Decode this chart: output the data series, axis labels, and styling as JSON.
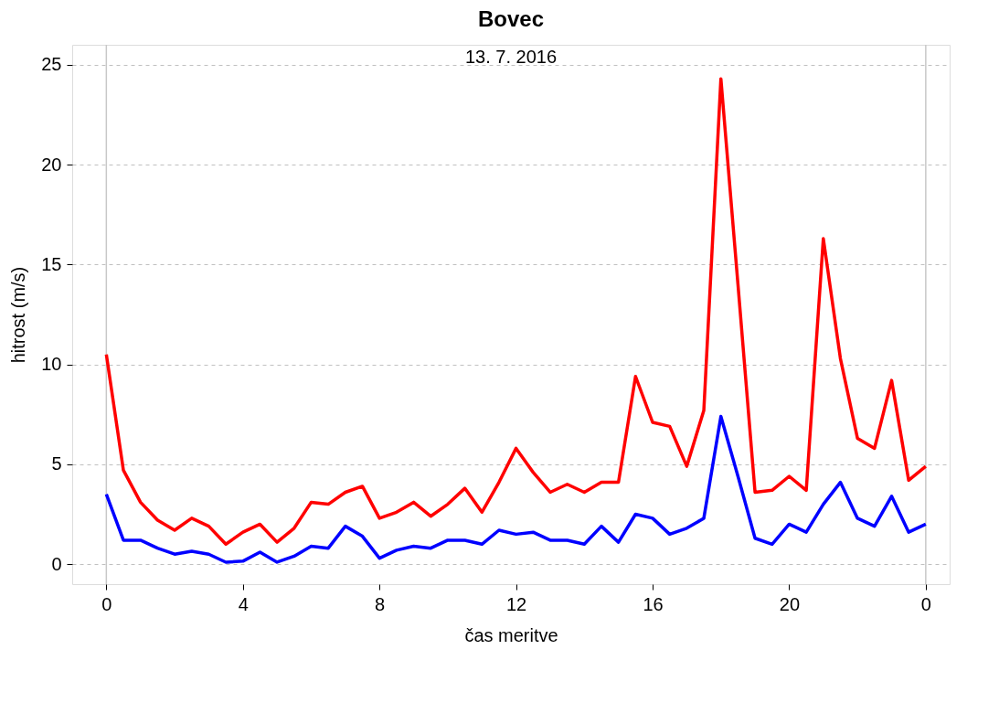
{
  "chart_data": {
    "type": "line",
    "title": "Bovec",
    "subtitle": "13. 7. 2016",
    "xlabel": "čas meritve",
    "ylabel": "hitrost (m/s)",
    "x": [
      "2016-07-13T00:00",
      "2016-07-13T00:30",
      "2016-07-13T01:00",
      "2016-07-13T01:30",
      "2016-07-13T02:00",
      "2016-07-13T02:30",
      "2016-07-13T03:00",
      "2016-07-13T03:30",
      "2016-07-13T04:00",
      "2016-07-13T04:30",
      "2016-07-13T05:00",
      "2016-07-13T05:30",
      "2016-07-13T06:00",
      "2016-07-13T06:30",
      "2016-07-13T07:00",
      "2016-07-13T07:30",
      "2016-07-13T08:00",
      "2016-07-13T08:30",
      "2016-07-13T09:00",
      "2016-07-13T09:30",
      "2016-07-13T10:00",
      "2016-07-13T10:30",
      "2016-07-13T11:00",
      "2016-07-13T11:30",
      "2016-07-13T12:00",
      "2016-07-13T12:30",
      "2016-07-13T13:00",
      "2016-07-13T13:30",
      "2016-07-13T14:00",
      "2016-07-13T14:30",
      "2016-07-13T15:00",
      "2016-07-13T15:30",
      "2016-07-13T16:00",
      "2016-07-13T16:30",
      "2016-07-13T17:00",
      "2016-07-13T17:30",
      "2016-07-13T18:00",
      "2016-07-13T18:30",
      "2016-07-13T19:00",
      "2016-07-13T19:30",
      "2016-07-13T20:00",
      "2016-07-13T20:30",
      "2016-07-13T21:00",
      "2016-07-13T21:30",
      "2016-07-13T22:00",
      "2016-07-13T22:30",
      "2016-07-13T23:00",
      "2016-07-13T23:30",
      "2016-07-14T00:00"
    ],
    "series": [
      {
        "color": "#ff0000",
        "values": [
          10.5,
          4.7,
          3.1,
          2.2,
          1.7,
          2.3,
          1.9,
          1.0,
          1.6,
          2.0,
          1.1,
          1.8,
          3.1,
          3.0,
          3.6,
          3.9,
          2.3,
          2.6,
          3.1,
          2.4,
          3.0,
          3.8,
          2.6,
          4.1,
          5.8,
          4.6,
          3.6,
          4.0,
          3.6,
          4.1,
          4.1,
          9.4,
          7.1,
          6.9,
          4.9,
          7.7,
          24.3,
          14.0,
          3.6,
          3.7,
          4.4,
          3.7,
          16.3,
          10.3,
          6.3,
          5.8,
          9.2,
          4.2,
          4.9
        ]
      },
      {
        "color": "#0000ff",
        "values": [
          3.5,
          1.2,
          1.2,
          0.8,
          0.5,
          0.65,
          0.5,
          0.1,
          0.15,
          0.6,
          0.1,
          0.4,
          0.9,
          0.8,
          1.9,
          1.4,
          0.3,
          0.7,
          0.9,
          0.8,
          1.2,
          1.2,
          1.0,
          1.7,
          1.5,
          1.6,
          1.2,
          1.2,
          1.0,
          1.9,
          1.1,
          2.5,
          2.3,
          1.5,
          1.8,
          2.3,
          7.4,
          4.4,
          1.3,
          1.0,
          2.0,
          1.6,
          3.0,
          4.1,
          2.3,
          1.9,
          3.4,
          1.6,
          2.0
        ]
      }
    ],
    "xlim": [
      "2016-07-12T23:00",
      "2016-07-14T00:42"
    ],
    "ylim": [
      -1,
      26
    ],
    "xticks": [
      {
        "value": "2016-07-13T00:00",
        "label": "0"
      },
      {
        "value": "2016-07-13T04:00",
        "label": "4"
      },
      {
        "value": "2016-07-13T08:00",
        "label": "8"
      },
      {
        "value": "2016-07-13T12:00",
        "label": "12"
      },
      {
        "value": "2016-07-13T16:00",
        "label": "16"
      },
      {
        "value": "2016-07-13T20:00",
        "label": "20"
      },
      {
        "value": "2016-07-14T00:00",
        "label": "0"
      }
    ],
    "yticks": [
      0,
      5,
      10,
      15,
      20,
      25
    ],
    "ref_lines": [
      {
        "axis": "x",
        "value": "2016-07-13T00:00",
        "color": "#c8c8c8"
      },
      {
        "axis": "x",
        "value": "2016-07-14T00:00",
        "color": "#c8c8c8"
      }
    ],
    "grid": "y",
    "marker": "none",
    "line_style": "solid"
  }
}
